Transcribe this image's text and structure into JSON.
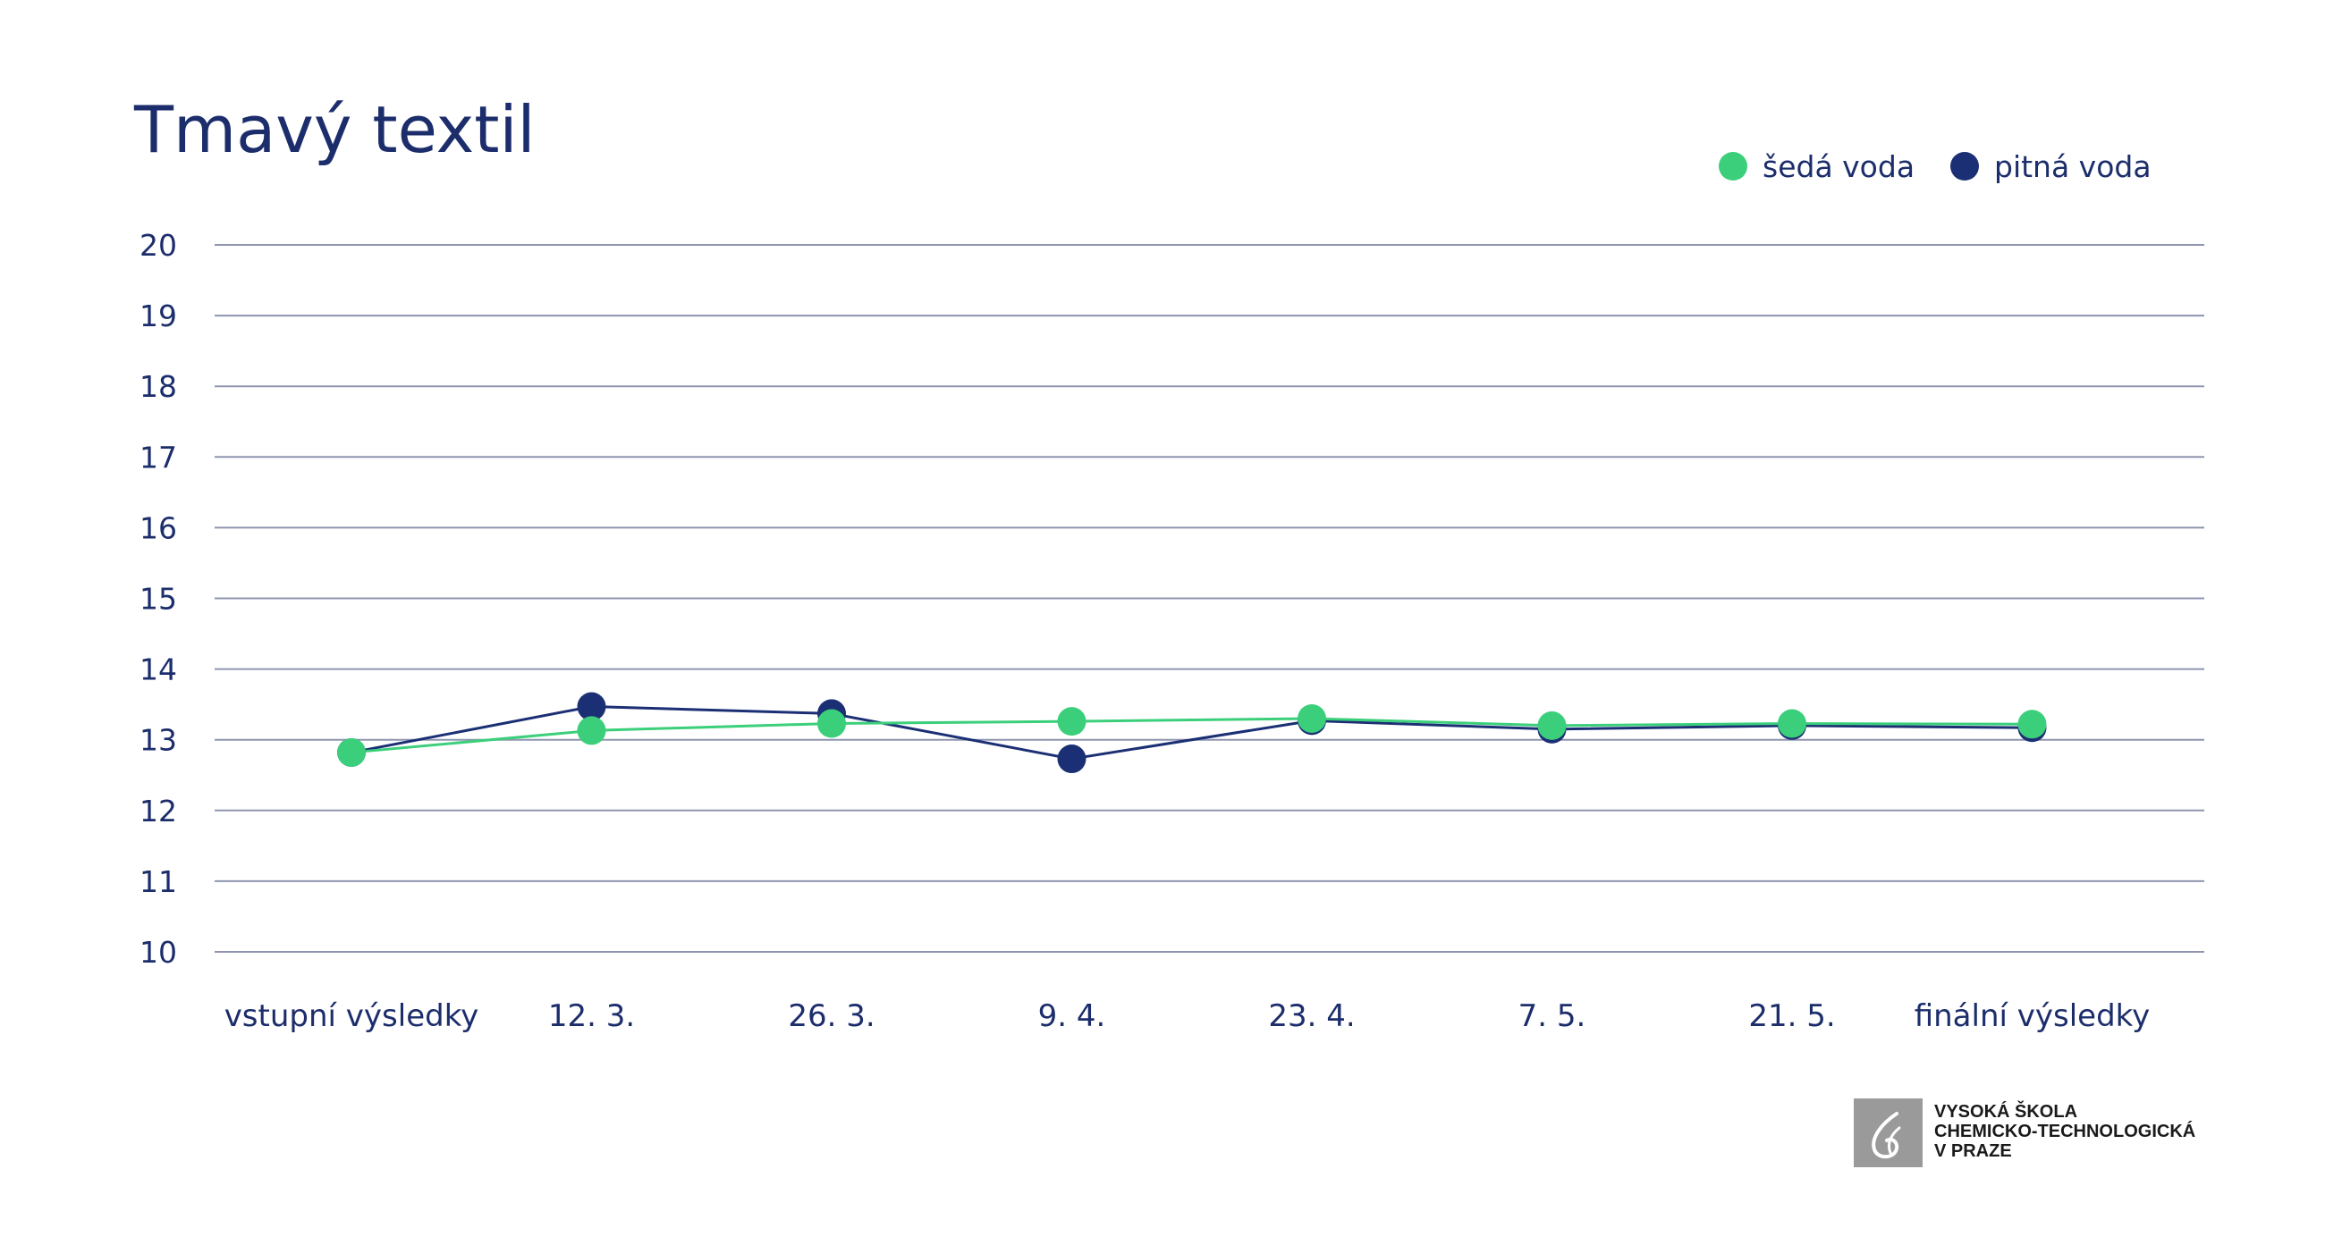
{
  "chart_data": {
    "type": "line",
    "title": "Tmavý textil",
    "xlabel": "",
    "ylabel": "",
    "ylim": [
      10,
      20
    ],
    "yticks": [
      "20",
      "19",
      "18",
      "17",
      "16",
      "15",
      "14",
      "13",
      "12",
      "11",
      "10"
    ],
    "categories": [
      "vstupní výsledky",
      "12. 3.",
      "26. 3.",
      "9. 4.",
      "23. 4.",
      "7. 5.",
      "21. 5.",
      "finální výsledky"
    ],
    "series": [
      {
        "name": "pitná voda",
        "color": "#1b2f74",
        "values": [
          12.82,
          13.47,
          13.37,
          12.73,
          13.27,
          13.15,
          13.2,
          13.17
        ]
      },
      {
        "name": "šedá voda",
        "color": "#3ccf7b",
        "values": [
          12.82,
          13.13,
          13.23,
          13.26,
          13.3,
          13.2,
          13.23,
          13.22
        ]
      }
    ],
    "legend": {
      "position": "top-right",
      "items": [
        {
          "name": "šedá voda",
          "color": "#3ccf7b"
        },
        {
          "name": "pitná voda",
          "color": "#1b2f74"
        }
      ]
    },
    "grid": true
  },
  "logo": {
    "line1": "VYSOKÁ ŠKOLA",
    "line2": "CHEMICKO-TECHNOLOGICKÁ",
    "line3": "V PRAZE"
  }
}
